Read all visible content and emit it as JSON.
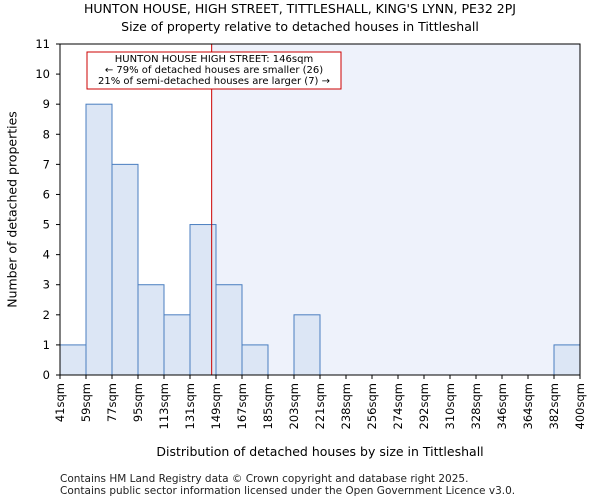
{
  "chart_data": {
    "type": "bar",
    "title": "HUNTON HOUSE, HIGH STREET, TITTLESHALL, KING'S LYNN, PE32 2PJ",
    "subtitle": "Size of property relative to detached houses in Tittleshall",
    "xlabel": "Distribution of detached houses by size in Tittleshall",
    "ylabel": "Number of detached properties",
    "bin_edges": [
      "41sqm",
      "59sqm",
      "77sqm",
      "95sqm",
      "113sqm",
      "131sqm",
      "149sqm",
      "167sqm",
      "185sqm",
      "203sqm",
      "221sqm",
      "238sqm",
      "256sqm",
      "274sqm",
      "292sqm",
      "310sqm",
      "328sqm",
      "346sqm",
      "364sqm",
      "382sqm",
      "400sqm"
    ],
    "bin_edge_values": [
      41,
      59,
      77,
      95,
      113,
      131,
      149,
      167,
      185,
      203,
      221,
      238,
      256,
      274,
      292,
      310,
      328,
      346,
      364,
      382,
      400
    ],
    "values": [
      1,
      9,
      7,
      3,
      2,
      5,
      3,
      1,
      0,
      2,
      0,
      0,
      0,
      0,
      0,
      0,
      0,
      0,
      0,
      1
    ],
    "yticks": [
      0,
      1,
      2,
      3,
      4,
      5,
      6,
      7,
      8,
      9,
      10,
      11
    ],
    "ylim": [
      0,
      11
    ],
    "marker_value": 146,
    "annotation": {
      "line1": "HUNTON HOUSE HIGH STREET: 146sqm",
      "line2": "← 79% of detached houses are smaller (26)",
      "line3": "21% of semi-detached houses are larger (7) →"
    },
    "colors": {
      "bar_fill": "#dce6f5",
      "bar_edge": "#4a7ec0",
      "highlight_bg": "#eef2fb",
      "marker": "#cc0000"
    }
  },
  "footer": {
    "line1": "Contains HM Land Registry data © Crown copyright and database right 2025.",
    "line2": "Contains public sector information licensed under the Open Government Licence v3.0."
  }
}
